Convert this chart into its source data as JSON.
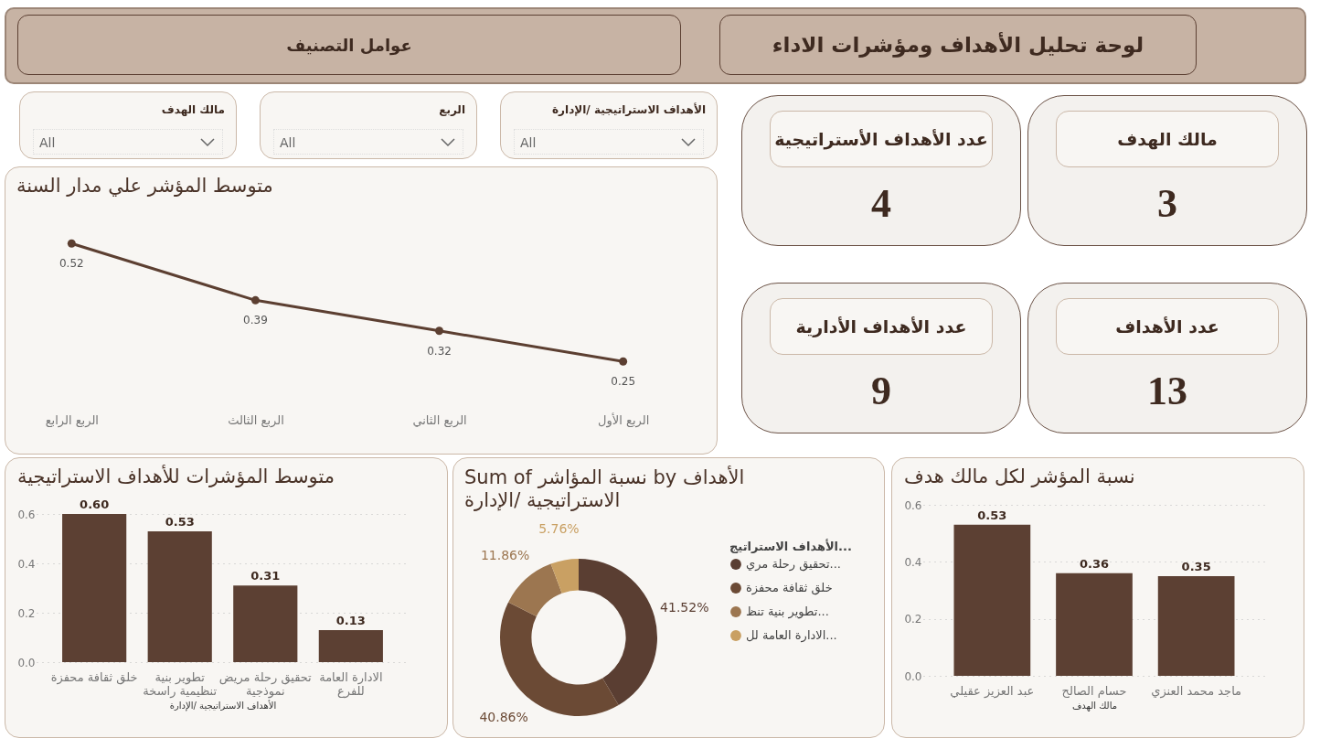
{
  "chart_data": [
    {
      "type": "other",
      "title": "لوحة تحليل الأهداف ومؤشرات الاداء",
      "subtitle": "عوامل التصنيف",
      "annotations": [
        "الأهداف الاستراتيجية /الإدارة",
        "All",
        "الربع",
        "All",
        "مالك الهدف",
        "All"
      ]
    },
    {
      "type": "other",
      "categories": [
        "مالك الهدف",
        "عدد الأهداف الأستراتيجية",
        "عدد الأهداف",
        "عدد الأهداف الأدارية"
      ],
      "values": [
        3,
        4,
        13,
        9
      ],
      "data_labels": true
    },
    {
      "type": "line",
      "title": "متوسط المؤشر علي مدار السنة",
      "categories": [
        "الربع الرابع",
        "الربع الثالث",
        "الربع الثاني",
        "الربع الأول"
      ],
      "values": [
        0.52,
        0.39,
        0.32,
        0.25
      ],
      "color": "#5c3f31",
      "data_labels": true,
      "marker": "circle",
      "tick_labels": "x",
      "grid": false
    },
    {
      "type": "bar",
      "title": "متوسط المؤشرات للأهداف الاستراتيجية",
      "xlabel": "الأهداف الاستراتيجية /الإدارة",
      "categories": [
        "خلق ثقافة محفزة",
        "تطوير بنية تنظيمية راسخة",
        "تحقيق رحلة مريض نموذجية",
        "الادارة العامة للفرع"
      ],
      "values": [
        0.6,
        0.53,
        0.31,
        0.13
      ],
      "value_labels": [
        "0.60",
        "0.53",
        "0.31",
        "0.13"
      ],
      "color": "#5c4033",
      "ylim": [
        0,
        0.6
      ],
      "yticks": [
        {
          "value": 0,
          "label": "0.0"
        },
        0.2,
        0.4,
        0.6
      ],
      "grid": "y"
    },
    {
      "type": "donut",
      "title": "Sum of نسبة المؤاشر by الأهداف الاستراتيجية /الإدارة",
      "legend_title": "الأهداف الاستراتيج...",
      "categories": [
        "تحقيق رحلة مري...",
        "خلق ثقافة محفزة",
        "تطوير بنية تنظ...",
        "الادارة العامة لل..."
      ],
      "values": [
        41.52,
        40.86,
        11.86,
        5.76
      ],
      "value_labels": [
        "41.52%",
        "40.86%",
        "11.86%",
        "5.76%"
      ],
      "colors": [
        "#5a3e32",
        "#6b4a35",
        "#9c7650",
        "#c9a063"
      ],
      "legend": "right"
    },
    {
      "type": "bar",
      "title": "نسبة المؤشر لكل مالك هدف",
      "xlabel": "مالك الهدف",
      "categories": [
        "عبد العزيز عقيلي",
        "حسام الصالح",
        "ماجد محمد العنزي"
      ],
      "values": [
        0.53,
        0.36,
        0.35
      ],
      "value_labels": [
        "0.53",
        "0.36",
        "0.35"
      ],
      "color": "#5c4033",
      "ylim": [
        0,
        0.6
      ],
      "yticks": [
        {
          "value": 0,
          "label": "0.0"
        },
        0.2,
        0.4,
        0.6
      ],
      "grid": "y"
    }
  ]
}
